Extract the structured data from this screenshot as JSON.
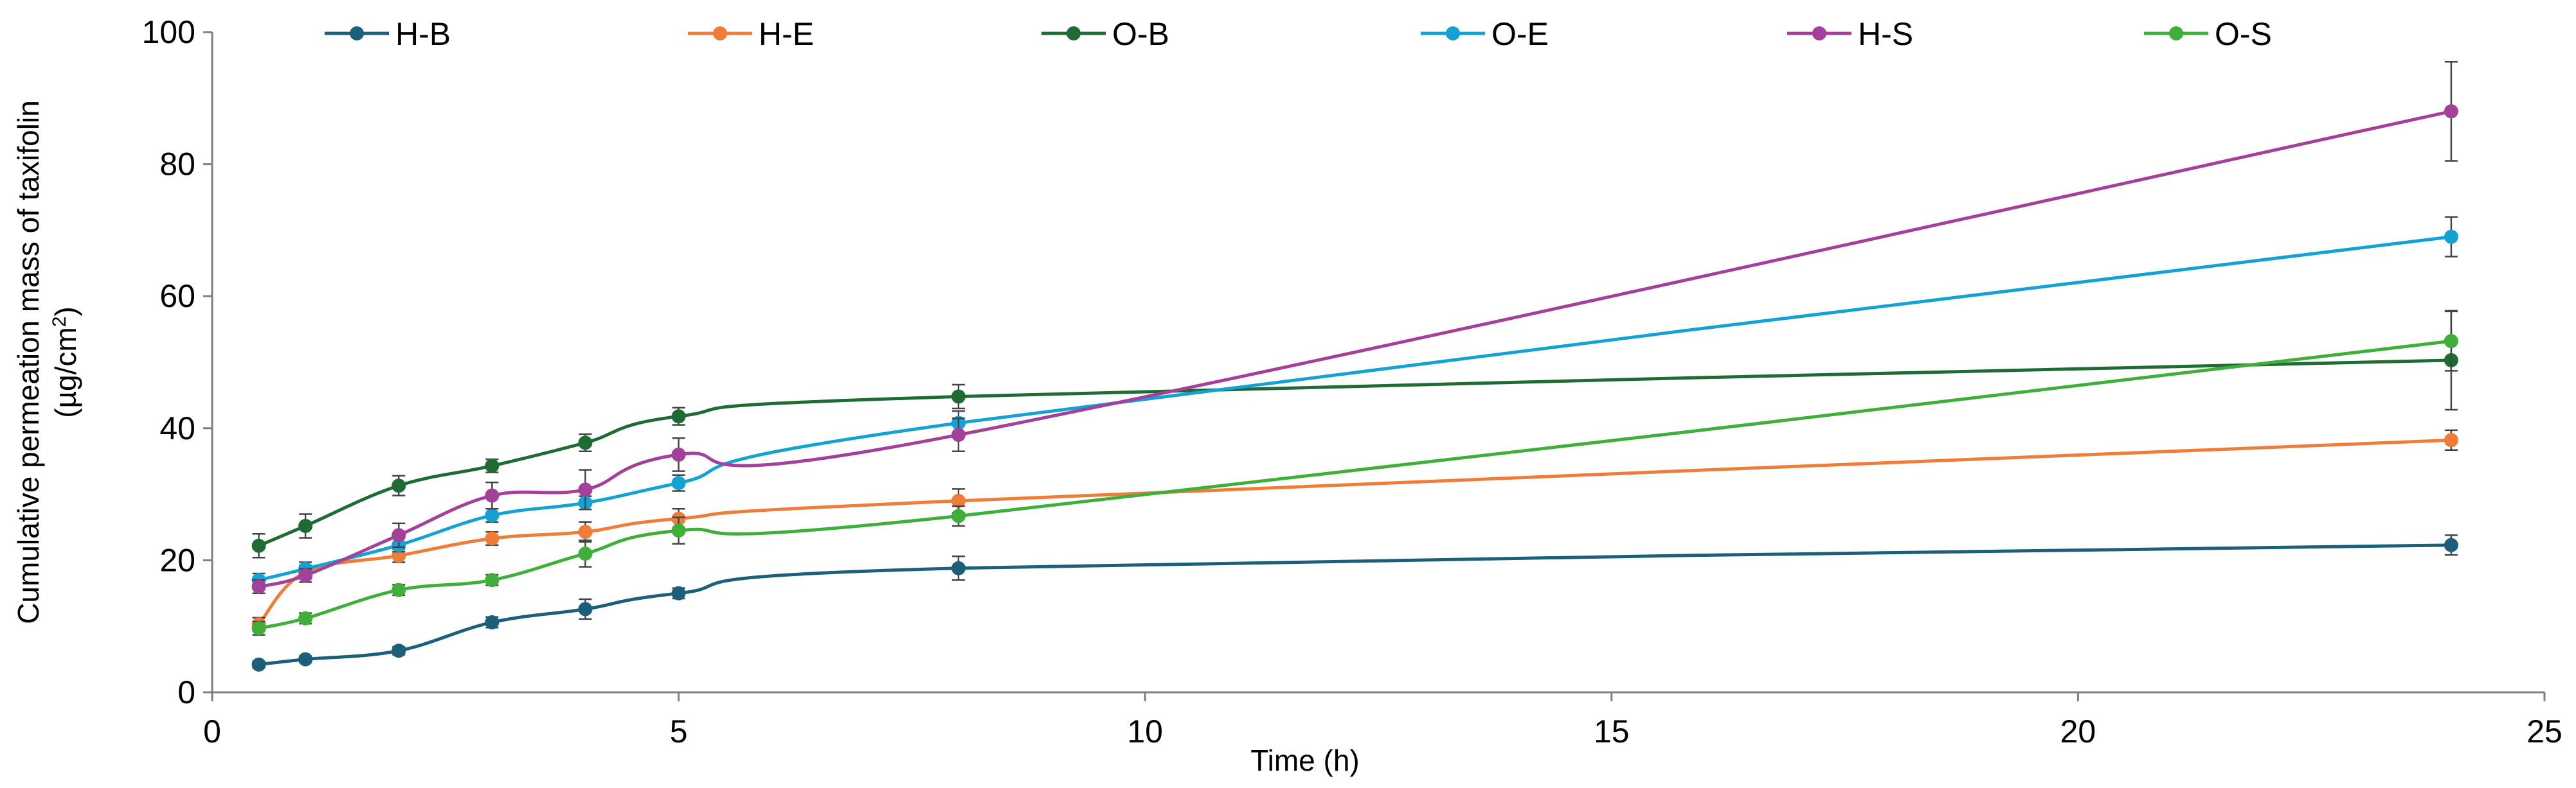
{
  "chart_data": {
    "type": "line",
    "xlabel": "Time (h)",
    "ylabel_line1": "Cumulative permeation mass of taxifolin",
    "ylabel_line2_prefix": "(µg/cm",
    "ylabel_line2_sup": "2",
    "ylabel_line2_suffix": ")",
    "xlim": [
      0,
      25
    ],
    "ylim": [
      0,
      100
    ],
    "xticks": [
      0,
      5,
      10,
      15,
      20,
      25
    ],
    "yticks": [
      0,
      20,
      40,
      60,
      80,
      100
    ],
    "grid": false,
    "legend_position": "top",
    "x": [
      0.5,
      1,
      2,
      3,
      4,
      5,
      8,
      24
    ],
    "series": [
      {
        "name": "H-B",
        "color": "#1b5f7a",
        "values": [
          4.2,
          5.0,
          6.3,
          10.6,
          12.6,
          15.0,
          18.8,
          22.3
        ],
        "errors": [
          0.5,
          0.5,
          0.6,
          0.8,
          1.5,
          0.8,
          1.8,
          1.5
        ]
      },
      {
        "name": "H-E",
        "color": "#f07c3a",
        "values": [
          10.3,
          18.2,
          20.7,
          23.3,
          24.3,
          26.3,
          29.0,
          38.2
        ],
        "errors": [
          1.0,
          1.0,
          1.0,
          1.0,
          1.5,
          1.5,
          1.8,
          1.5
        ]
      },
      {
        "name": "O-B",
        "color": "#1e6b34",
        "values": [
          22.2,
          25.2,
          31.3,
          34.3,
          37.8,
          41.8,
          44.8,
          50.3
        ],
        "errors": [
          1.8,
          1.8,
          1.5,
          1.0,
          1.3,
          1.3,
          1.8,
          7.5
        ]
      },
      {
        "name": "O-E",
        "color": "#13a2d3",
        "values": [
          17.0,
          18.7,
          22.3,
          26.8,
          28.7,
          31.7,
          40.8,
          69.0
        ],
        "errors": [
          1.0,
          1.0,
          1.0,
          1.0,
          1.0,
          1.2,
          1.8,
          3.0
        ]
      },
      {
        "name": "H-S",
        "color": "#a3419a",
        "values": [
          16.0,
          17.7,
          23.8,
          29.8,
          30.7,
          36.0,
          39.0,
          88.0
        ],
        "errors": [
          1.0,
          1.0,
          1.8,
          2.0,
          3.0,
          2.5,
          2.5,
          7.5
        ]
      },
      {
        "name": "O-S",
        "color": "#3fae3a",
        "values": [
          9.7,
          11.2,
          15.5,
          17.0,
          21.0,
          24.5,
          26.7,
          53.2
        ],
        "errors": [
          1.0,
          0.8,
          0.8,
          0.8,
          2.0,
          2.0,
          1.5,
          4.5
        ]
      }
    ]
  }
}
